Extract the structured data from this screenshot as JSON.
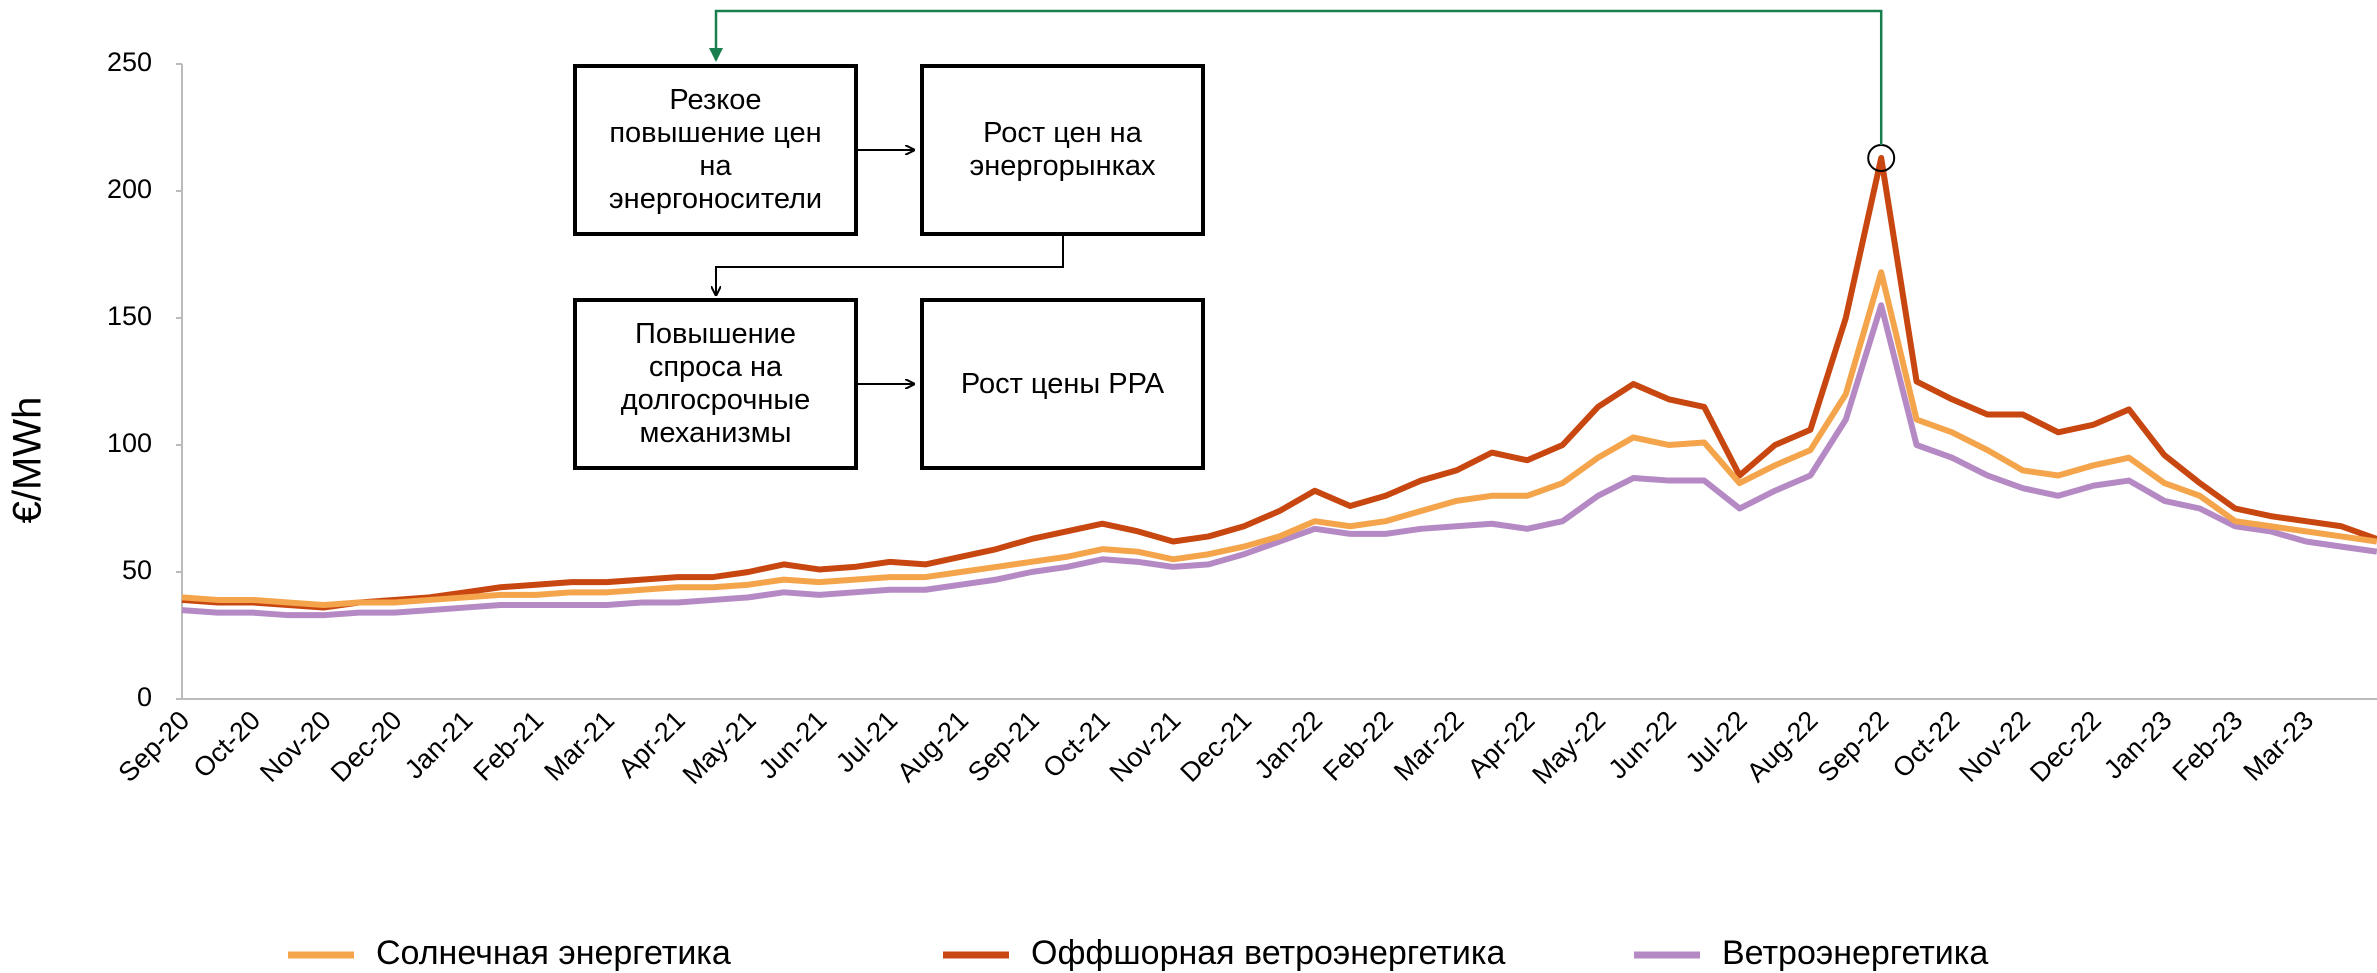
{
  "chart_data": {
    "type": "line",
    "y_label": "€/MWh",
    "categories": [
      "Sep-20",
      null,
      "Oct-20",
      null,
      "Nov-20",
      null,
      "Dec-20",
      null,
      "Jan-21",
      null,
      "Feb-21",
      null,
      "Mar-21",
      null,
      "Apr-21",
      null,
      "May-21",
      null,
      "Jun-21",
      null,
      "Jul-21",
      null,
      "Aug-21",
      null,
      "Sep-21",
      null,
      "Oct-21",
      null,
      "Nov-21",
      null,
      "Dec-21",
      null,
      "Jan-22",
      null,
      "Feb-22",
      null,
      "Mar-22",
      null,
      "Apr-22",
      null,
      "May-22",
      null,
      "Jun-22",
      null,
      "Jul-22",
      null,
      "Aug-22",
      null,
      "Sep-22",
      null,
      "Oct-22",
      null,
      "Nov-22",
      null,
      "Dec-22",
      null,
      "Jan-23",
      null,
      "Feb-23",
      null,
      "Mar-23",
      null,
      null
    ],
    "series": [
      {
        "name": "Солнечная энергетика",
        "color": "#f4a44a",
        "values": [
          40,
          39,
          39,
          38,
          37,
          38,
          38,
          39,
          40,
          41,
          41,
          42,
          42,
          43,
          44,
          44,
          45,
          47,
          46,
          47,
          48,
          48,
          50,
          52,
          54,
          56,
          59,
          58,
          55,
          57,
          60,
          64,
          70,
          68,
          70,
          74,
          78,
          80,
          80,
          85,
          95,
          103,
          100,
          101,
          85,
          92,
          98,
          120,
          168,
          110,
          105,
          98,
          90,
          88,
          92,
          95,
          85,
          80,
          70,
          68,
          66,
          64,
          62
        ]
      },
      {
        "name": "Оффшорная ветроэнергетика",
        "color": "#c8460f",
        "values": [
          39,
          38,
          38,
          37,
          36,
          38,
          39,
          40,
          42,
          44,
          45,
          46,
          46,
          47,
          48,
          48,
          50,
          53,
          51,
          52,
          54,
          53,
          56,
          59,
          63,
          66,
          69,
          66,
          62,
          64,
          68,
          74,
          82,
          76,
          80,
          86,
          90,
          97,
          94,
          100,
          115,
          124,
          118,
          115,
          88,
          100,
          106,
          150,
          213,
          125,
          118,
          112,
          112,
          105,
          108,
          114,
          96,
          85,
          75,
          72,
          70,
          68,
          63
        ]
      },
      {
        "name": "Ветроэнергетика",
        "color": "#b58ac4",
        "values": [
          35,
          34,
          34,
          33,
          33,
          34,
          34,
          35,
          36,
          37,
          37,
          37,
          37,
          38,
          38,
          39,
          40,
          42,
          41,
          42,
          43,
          43,
          45,
          47,
          50,
          52,
          55,
          54,
          52,
          53,
          57,
          62,
          67,
          65,
          65,
          67,
          68,
          69,
          67,
          70,
          80,
          87,
          86,
          86,
          75,
          82,
          88,
          110,
          155,
          100,
          95,
          88,
          83,
          80,
          84,
          86,
          78,
          75,
          68,
          66,
          62,
          60,
          58
        ]
      }
    ],
    "ylim": [
      0,
      250
    ],
    "yticks": [
      0,
      50,
      100,
      150,
      200,
      250
    ],
    "annotations": [
      "Резкое повышение цен на энергоносители",
      "Рост цен на энергорынках",
      "Повышение спроса на долгосрочные механизмы",
      "Рост цены PPA"
    ]
  }
}
